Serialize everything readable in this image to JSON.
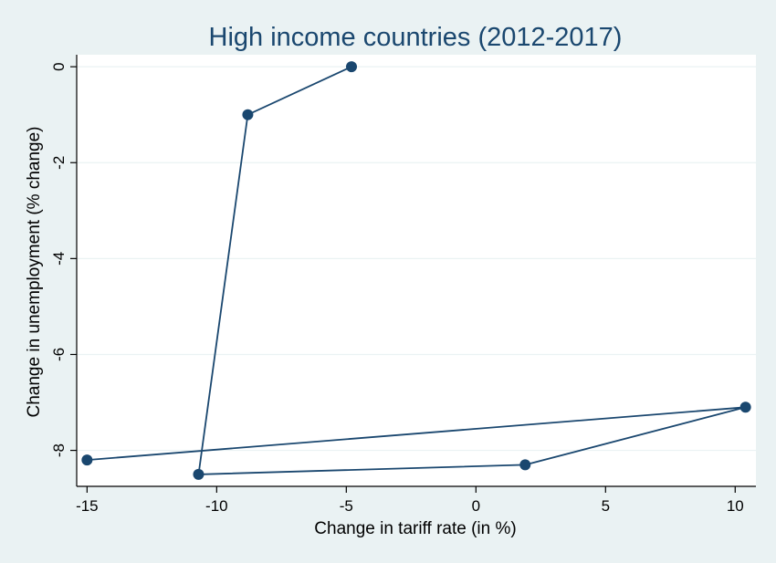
{
  "chart_data": {
    "type": "line",
    "title": "High income countries (2012-2017)",
    "xlabel": "Change in tariff rate (in %)",
    "ylabel": "Change in unemployment (% change)",
    "xlim": [
      -15.4,
      10.8
    ],
    "ylim": [
      -8.75,
      0.25
    ],
    "xticks": [
      -15,
      -10,
      -5,
      0,
      5,
      10
    ],
    "yticks": [
      0,
      -2,
      -4,
      -6,
      -8
    ],
    "grid": true,
    "colors": {
      "background": "#eaf2f3",
      "plot_area": "#ffffff",
      "line": "#1a476f",
      "marker": "#1a476f",
      "grid": "#eaf2f3",
      "title": "#1a476f"
    },
    "series": [
      {
        "x": [
          -4.8,
          -8.8,
          -10.7,
          1.9,
          10.4,
          -15.0
        ],
        "y": [
          0.0,
          -1.0,
          -8.5,
          -8.3,
          -7.1,
          -8.2
        ]
      }
    ]
  }
}
